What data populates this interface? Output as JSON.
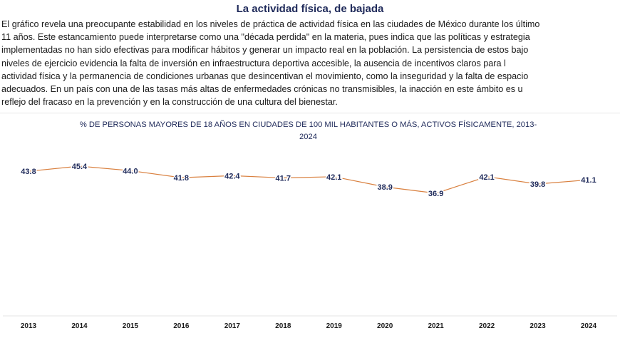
{
  "title": "La actividad física, de bajada",
  "body_lines": [
    "El gráfico revela una preocupante estabilidad en los niveles de práctica de actividad física en las ciudades de México durante los último",
    "11 años. Este estancamiento puede interpretarse como una \"década perdida\" en la materia, pues indica que las políticas y estrategia",
    "implementadas no han sido efectivas para modificar hábitos y generar un impacto real en la población. La persistencia de estos bajo",
    "niveles de ejercicio evidencia la falta de inversión en infraestructura deportiva accesible, la ausencia de incentivos claros para l",
    "actividad física y la permanencia de condiciones urbanas que desincentivan el movimiento, como la inseguridad y la falta de espacio",
    "adecuados. En un país con una de las tasas más altas de enfermedades crónicas no transmisibles, la inacción en este ámbito es u",
    "reflejo del fracaso en la prevención y en la construcción de una cultura del bienestar."
  ],
  "colors": {
    "title": "#1f2a5a",
    "line": "#d9803f",
    "label": "#1f2a5a",
    "axis": "#e4e4e4"
  },
  "chart_data": {
    "type": "line",
    "title_lines": [
      "% DE PERSONAS MAYORES DE 18 AÑOS EN CIUDADES DE 100 MIL HABITANTES O MÁS, ACTIVOS FÍSICAMENTE, 2013-",
      "2024"
    ],
    "categories": [
      "2013",
      "2014",
      "2015",
      "2016",
      "2017",
      "2018",
      "2019",
      "2020",
      "2021",
      "2022",
      "2023",
      "2024"
    ],
    "series": [
      {
        "values": [
          43.8,
          45.4,
          44.0,
          41.8,
          42.4,
          41.7,
          42.1,
          38.9,
          36.9,
          42.1,
          39.8,
          41.1
        ]
      }
    ],
    "data_labels": [
      "43.8",
      "45.4",
      "44.0",
      "41.8",
      "42.4",
      "41.7",
      "42.1",
      "38.9",
      "36.9",
      "42.1",
      "39.8",
      "41.1"
    ],
    "legend": "none",
    "grid": false
  }
}
